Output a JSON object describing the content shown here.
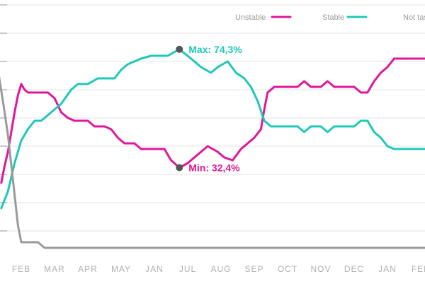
{
  "chart_data": {
    "type": "line",
    "title": "",
    "xlabel": "",
    "ylabel": "",
    "categories": [
      "FEB",
      "MAR",
      "APR",
      "MAY",
      "JAN",
      "JUL",
      "AUG",
      "SEP",
      "OCT",
      "NOV",
      "DEC",
      "JAN",
      "FEB"
    ],
    "ylim": [
      0,
      90
    ],
    "grid": true,
    "legend_position": "top-right",
    "series": [
      {
        "name": "Unstable",
        "color": "#e0169a",
        "points": [
          [
            -0.6,
            27
          ],
          [
            -0.5,
            33
          ],
          [
            -0.4,
            38
          ],
          [
            -0.3,
            45
          ],
          [
            -0.2,
            52
          ],
          [
            -0.1,
            58
          ],
          [
            0.0,
            62
          ],
          [
            0.1,
            60
          ],
          [
            0.2,
            59
          ],
          [
            0.5,
            59
          ],
          [
            0.8,
            59
          ],
          [
            1.0,
            57
          ],
          [
            1.2,
            52
          ],
          [
            1.4,
            50
          ],
          [
            1.6,
            49
          ],
          [
            2.0,
            49
          ],
          [
            2.2,
            47
          ],
          [
            2.5,
            47
          ],
          [
            2.7,
            46
          ],
          [
            2.9,
            43
          ],
          [
            3.1,
            41
          ],
          [
            3.4,
            41
          ],
          [
            3.6,
            39
          ],
          [
            3.8,
            39
          ],
          [
            4.3,
            39
          ],
          [
            4.5,
            35
          ],
          [
            4.75,
            32.4
          ],
          [
            5.0,
            34
          ],
          [
            5.3,
            37
          ],
          [
            5.6,
            40
          ],
          [
            5.9,
            38
          ],
          [
            6.1,
            36
          ],
          [
            6.35,
            35
          ],
          [
            6.6,
            39
          ],
          [
            6.8,
            41
          ],
          [
            7.0,
            43
          ],
          [
            7.2,
            46
          ],
          [
            7.3,
            53
          ],
          [
            7.4,
            59
          ],
          [
            7.6,
            61
          ],
          [
            7.8,
            61
          ],
          [
            8.1,
            61
          ],
          [
            8.3,
            61
          ],
          [
            8.5,
            63
          ],
          [
            8.7,
            61
          ],
          [
            9.0,
            61
          ],
          [
            9.2,
            63
          ],
          [
            9.4,
            61
          ],
          [
            9.8,
            61
          ],
          [
            10.0,
            61
          ],
          [
            10.2,
            59
          ],
          [
            10.4,
            59
          ],
          [
            10.6,
            63
          ],
          [
            10.8,
            66
          ],
          [
            11.0,
            68
          ],
          [
            11.2,
            71
          ],
          [
            11.5,
            71
          ],
          [
            12.0,
            71
          ],
          [
            12.4,
            71
          ]
        ]
      },
      {
        "name": "Stable",
        "color": "#1ec8b8",
        "points": [
          [
            -0.6,
            18
          ],
          [
            -0.4,
            24
          ],
          [
            -0.2,
            34
          ],
          [
            0.0,
            42
          ],
          [
            0.2,
            46
          ],
          [
            0.4,
            49
          ],
          [
            0.6,
            49
          ],
          [
            0.8,
            51
          ],
          [
            1.0,
            53
          ],
          [
            1.2,
            55
          ],
          [
            1.5,
            60
          ],
          [
            1.7,
            62
          ],
          [
            2.0,
            62
          ],
          [
            2.3,
            64
          ],
          [
            2.8,
            64
          ],
          [
            3.0,
            67
          ],
          [
            3.2,
            69
          ],
          [
            3.4,
            70
          ],
          [
            3.6,
            71
          ],
          [
            3.9,
            72
          ],
          [
            4.4,
            72
          ],
          [
            4.75,
            74.3
          ],
          [
            5.1,
            71
          ],
          [
            5.4,
            68
          ],
          [
            5.7,
            66
          ],
          [
            5.9,
            68
          ],
          [
            6.2,
            70
          ],
          [
            6.45,
            66
          ],
          [
            6.7,
            64
          ],
          [
            6.9,
            61
          ],
          [
            7.1,
            56
          ],
          [
            7.3,
            49
          ],
          [
            7.5,
            47
          ],
          [
            7.8,
            47
          ],
          [
            8.2,
            47
          ],
          [
            8.3,
            47
          ],
          [
            8.5,
            45
          ],
          [
            8.7,
            47
          ],
          [
            9.0,
            47
          ],
          [
            9.2,
            45
          ],
          [
            9.4,
            47
          ],
          [
            9.8,
            47
          ],
          [
            10.0,
            47
          ],
          [
            10.2,
            49
          ],
          [
            10.4,
            49
          ],
          [
            10.6,
            45
          ],
          [
            10.8,
            43
          ],
          [
            11.0,
            40
          ],
          [
            11.2,
            39
          ],
          [
            11.5,
            39
          ],
          [
            12.0,
            39
          ],
          [
            12.4,
            39
          ]
        ]
      },
      {
        "name": "Not tas",
        "color": "#9a9a9a",
        "points": [
          [
            -0.7,
            67
          ],
          [
            -0.55,
            56
          ],
          [
            -0.4,
            44
          ],
          [
            -0.25,
            28
          ],
          [
            -0.1,
            12
          ],
          [
            0.0,
            6
          ],
          [
            0.2,
            6
          ],
          [
            0.5,
            6
          ],
          [
            0.7,
            4
          ],
          [
            1.0,
            4
          ],
          [
            2.0,
            4
          ],
          [
            3.0,
            4
          ],
          [
            5.0,
            4
          ],
          [
            7.0,
            4
          ],
          [
            9.0,
            4
          ],
          [
            11.0,
            4
          ],
          [
            12.4,
            4
          ]
        ]
      }
    ],
    "annotations": [
      {
        "text": "Max: 74,3%",
        "x": 4.75,
        "y": 74.3,
        "color": "#1ec8b8",
        "placement": "right"
      },
      {
        "text": "Min: 32,4%",
        "x": 4.75,
        "y": 32.4,
        "color": "#e0169a",
        "placement": "right"
      }
    ]
  }
}
